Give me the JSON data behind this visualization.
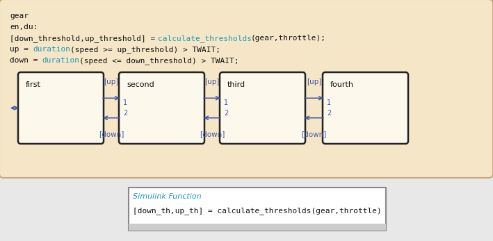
{
  "fig_bg": "#e8e8e8",
  "outer_bg": "#f5e6c8",
  "outer_edge": "#c8a878",
  "state_bg": "#fdf8ec",
  "state_edge": "#222222",
  "arrow_color": "#4455aa",
  "black": "#111111",
  "blue": "#2299bb",
  "title_text": "gear",
  "line2": "en,du:",
  "line3_pre": "[down_threshold,up_threshold] = ",
  "line3_link": "calculate_thresholds",
  "line3_post": "(gear,throttle);",
  "line4_pre": "up = ",
  "line4_link": "duration",
  "line4_post": "(speed >= up_threshold) > TWAIT;",
  "line5_pre": "down = ",
  "line5_link": "duration",
  "line5_post": "(speed <= down_threshold) > TWAIT;",
  "states": [
    "first",
    "second",
    "third",
    "fourth"
  ],
  "func_box_title": "Simulink Function",
  "func_box_line": "[down_th,up_th] = calculate_thresholds(gear,throttle)",
  "up_labels": [
    "[up]",
    "[up]",
    "[up]"
  ],
  "down_labels": [
    "[down]",
    "[down]",
    "[down]"
  ]
}
